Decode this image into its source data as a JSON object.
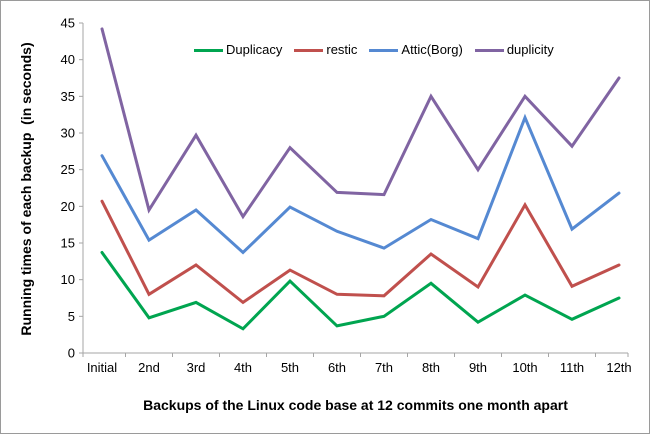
{
  "chart_data": {
    "type": "line",
    "title": "",
    "categories": [
      "Initial",
      "2nd",
      "3rd",
      "4th",
      "5th",
      "6th",
      "7th",
      "8th",
      "9th",
      "10th",
      "11th",
      "12th"
    ],
    "series": [
      {
        "name": "Duplicacy",
        "color": "#00A550",
        "values": [
          13.7,
          4.8,
          6.9,
          3.3,
          9.8,
          3.7,
          5.0,
          9.5,
          4.2,
          7.9,
          4.6,
          7.5
        ]
      },
      {
        "name": "restic",
        "color": "#C0504D",
        "values": [
          20.7,
          8.0,
          12.0,
          6.9,
          11.3,
          8.0,
          7.8,
          13.5,
          9.0,
          20.2,
          9.1,
          12.0
        ]
      },
      {
        "name": "Attic(Borg)",
        "color": "#5589D2",
        "values": [
          26.9,
          15.4,
          19.5,
          13.7,
          19.9,
          16.6,
          14.3,
          18.2,
          15.6,
          32.1,
          16.9,
          21.8
        ]
      },
      {
        "name": "duplicity",
        "color": "#8064A2",
        "values": [
          44.2,
          19.5,
          29.7,
          18.6,
          28.0,
          21.9,
          21.6,
          35.0,
          25.0,
          35.0,
          28.2,
          37.5
        ]
      }
    ],
    "xlabel": "Backups of the Linux code base at 12 commits one month apart",
    "ylabel": "Running times of each backup  (in seconds)",
    "ylim": [
      0,
      45
    ],
    "ytick_step": 5,
    "yticks": [
      "0",
      "5",
      "10",
      "15",
      "20",
      "25",
      "30",
      "35",
      "40",
      "45"
    ],
    "legend_position": "top",
    "grid": false,
    "axis_color": "#A6A6A6",
    "text_color": "#000000",
    "line_width": 3
  }
}
